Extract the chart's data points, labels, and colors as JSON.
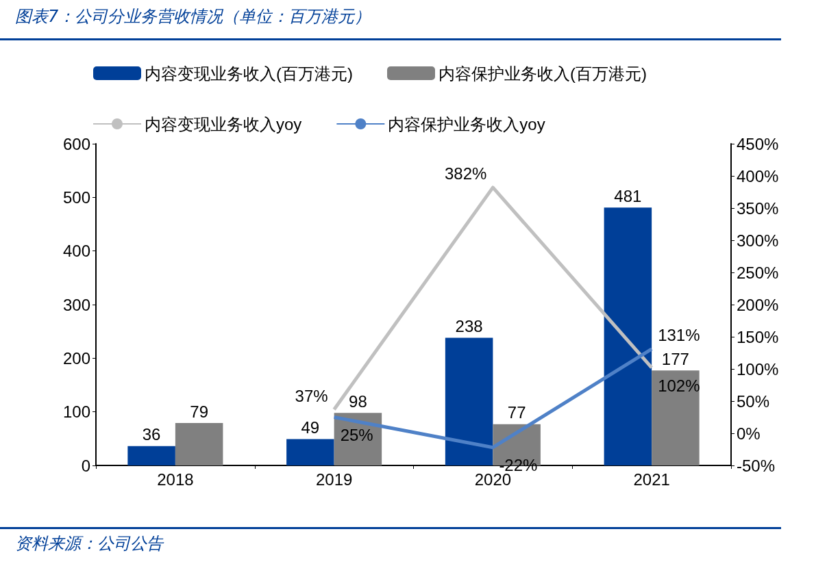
{
  "chart_data": {
    "type": "bar",
    "title": "图表7：公司分业务营收情况（单位：百万港元）",
    "annotations": [
      "资料来源：公司公告"
    ],
    "categories": [
      "2018",
      "2019",
      "2020",
      "2021"
    ],
    "series": [
      {
        "name": "内容变现业务收入(百万港元)",
        "color": "#003f98",
        "values": [
          36,
          49,
          238,
          481
        ]
      },
      {
        "name": "内容保护业务收入(百万港元)",
        "color": "#808080",
        "values": [
          79,
          98,
          77,
          177
        ]
      },
      {
        "name": "内容变现业务收入yoy",
        "type": "line",
        "axis": "y2",
        "color": "#c0c0c0",
        "values": [
          null,
          37,
          382,
          102
        ],
        "value_labels": [
          null,
          "37%",
          "382%",
          "102%"
        ]
      },
      {
        "name": "内容保护业务收入yoy",
        "type": "line",
        "axis": "y2",
        "color": "#4f81c7",
        "values": [
          null,
          25,
          -22,
          131
        ],
        "value_labels": [
          null,
          "25%",
          "-22%",
          "131%"
        ]
      }
    ],
    "data_labels": true,
    "marker": "none",
    "line_style": "solid",
    "grid": false,
    "legend": "top",
    "ylim": [
      0,
      600
    ],
    "yticks": [
      0,
      100,
      200,
      300,
      400,
      500,
      600
    ],
    "y2lim": [
      -50,
      450
    ],
    "y2ticks": [
      {
        "value": -50,
        "label": "-50%"
      },
      {
        "value": 0,
        "label": "0%"
      },
      {
        "value": 50,
        "label": "50%"
      },
      {
        "value": 100,
        "label": "100%"
      },
      {
        "value": 150,
        "label": "150%"
      },
      {
        "value": 200,
        "label": "200%"
      },
      {
        "value": 250,
        "label": "250%"
      },
      {
        "value": 300,
        "label": "300%"
      },
      {
        "value": 350,
        "label": "350%"
      },
      {
        "value": 400,
        "label": "400%"
      },
      {
        "value": 450,
        "label": "450%"
      }
    ]
  }
}
